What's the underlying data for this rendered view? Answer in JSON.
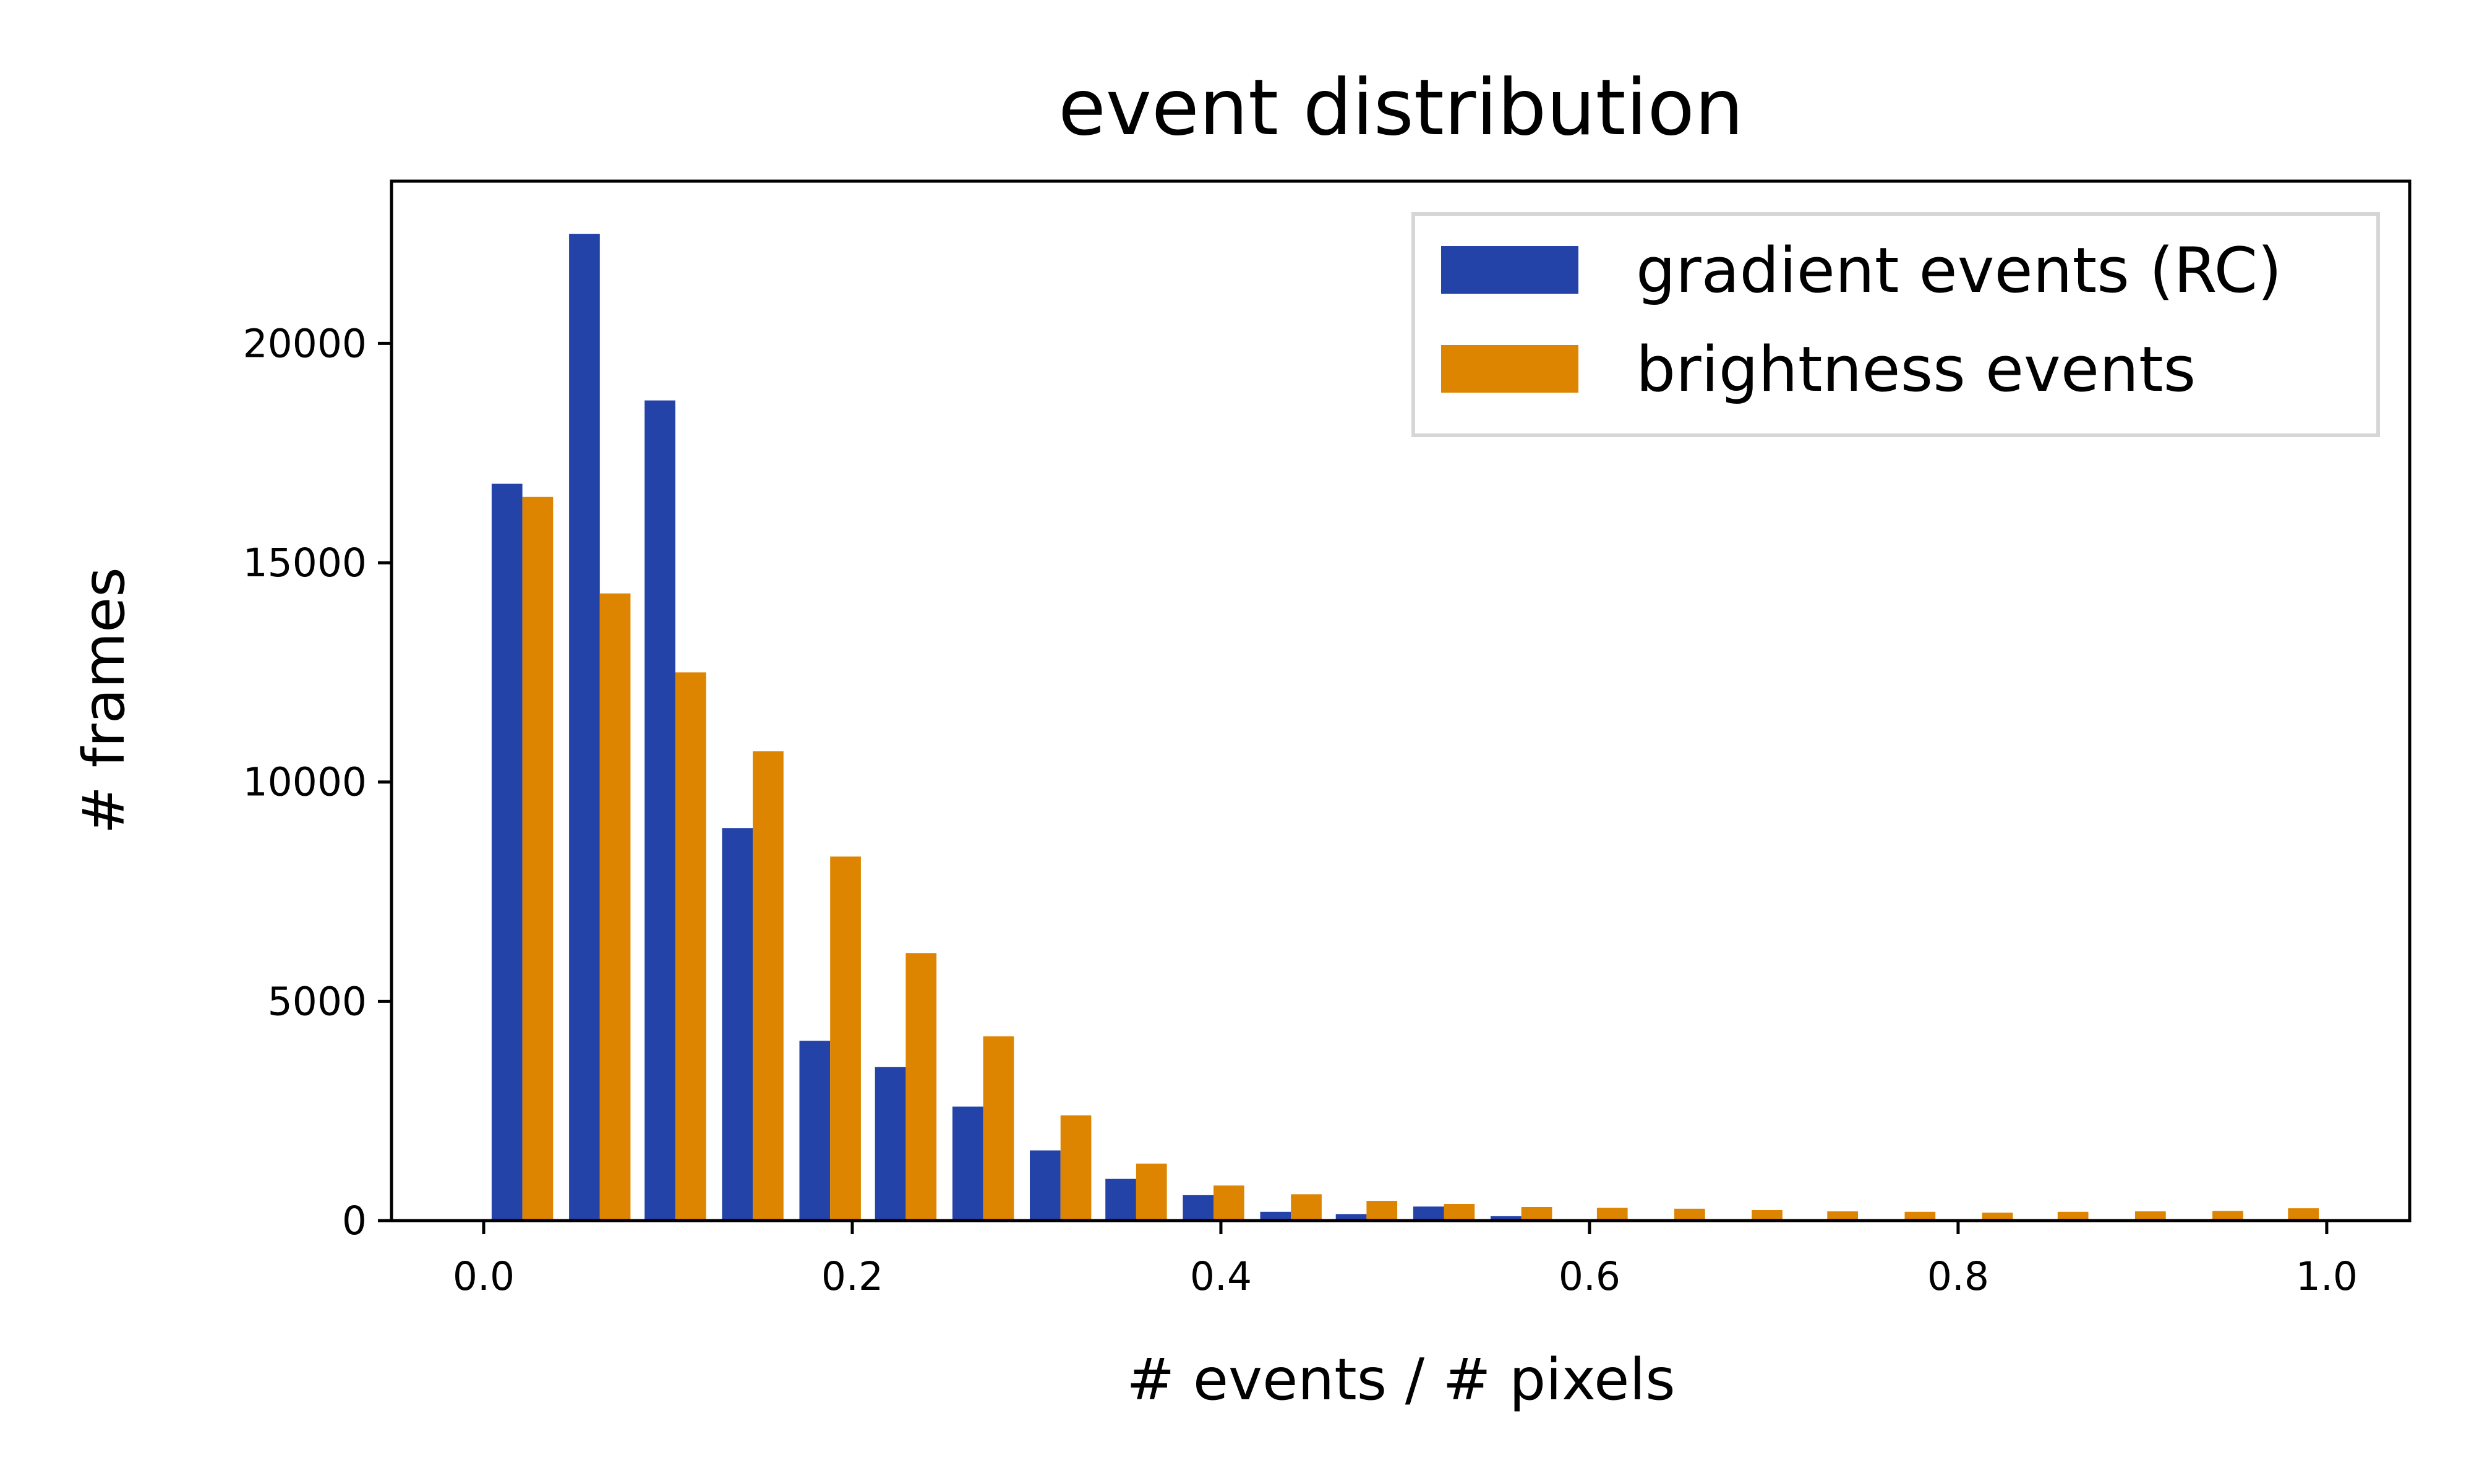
{
  "chart_data": {
    "type": "bar",
    "title": "event distribution",
    "xlabel": "# events / # pixels",
    "ylabel": "# frames",
    "xlim": [
      -0.05,
      1.045
    ],
    "ylim": [
      0,
      23700
    ],
    "xticks": [
      0.0,
      0.2,
      0.4,
      0.6,
      0.8,
      1.0
    ],
    "xtick_labels": [
      "0.0",
      "0.2",
      "0.4",
      "0.6",
      "0.8",
      "1.0"
    ],
    "yticks": [
      0,
      5000,
      10000,
      15000,
      20000
    ],
    "ytick_labels": [
      "0",
      "5000",
      "10000",
      "15000",
      "20000"
    ],
    "grid": false,
    "legend_position": "top-right",
    "bin_width": 0.04167,
    "categories": [
      "0.021",
      "0.063",
      "0.104",
      "0.146",
      "0.188",
      "0.229",
      "0.271",
      "0.313",
      "0.354",
      "0.396",
      "0.438",
      "0.479",
      "0.521",
      "0.563",
      "0.604",
      "0.646",
      "0.688",
      "0.729",
      "0.771",
      "0.813",
      "0.854",
      "0.896",
      "0.938",
      "0.979"
    ],
    "series": [
      {
        "name": "gradient events (RC)",
        "color": "#2443a8",
        "values": [
          16800,
          22500,
          18700,
          8950,
          4100,
          3500,
          2600,
          1600,
          950,
          580,
          200,
          150,
          320,
          100,
          20,
          10,
          5,
          5,
          0,
          0,
          0,
          0,
          0,
          0
        ]
      },
      {
        "name": "brightness events",
        "color": "#dd8400",
        "values": [
          16500,
          14300,
          12500,
          10700,
          8300,
          6100,
          4200,
          2400,
          1300,
          800,
          600,
          450,
          380,
          310,
          290,
          270,
          240,
          210,
          200,
          180,
          200,
          210,
          220,
          280
        ]
      }
    ]
  }
}
